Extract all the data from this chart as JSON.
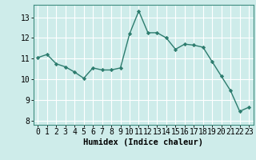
{
  "x": [
    0,
    1,
    2,
    3,
    4,
    5,
    6,
    7,
    8,
    9,
    10,
    11,
    12,
    13,
    14,
    15,
    16,
    17,
    18,
    19,
    20,
    21,
    22,
    23
  ],
  "y": [
    11.05,
    11.2,
    10.75,
    10.6,
    10.35,
    10.05,
    10.55,
    10.45,
    10.45,
    10.55,
    12.2,
    13.3,
    12.25,
    12.25,
    12.0,
    11.45,
    11.7,
    11.65,
    11.55,
    10.85,
    10.15,
    9.45,
    8.45,
    8.65
  ],
  "line_color": "#2d7c6e",
  "marker": "D",
  "marker_size": 2.2,
  "bg_color": "#ceecea",
  "grid_color": "#ffffff",
  "xlabel": "Humidex (Indice chaleur)",
  "xlabel_fontsize": 7.5,
  "tick_fontsize": 7,
  "ylim": [
    7.8,
    13.6
  ],
  "yticks": [
    8,
    9,
    10,
    11,
    12,
    13
  ],
  "xticks": [
    0,
    1,
    2,
    3,
    4,
    5,
    6,
    7,
    8,
    9,
    10,
    11,
    12,
    13,
    14,
    15,
    16,
    17,
    18,
    19,
    20,
    21,
    22,
    23
  ],
  "linewidth": 1.0
}
